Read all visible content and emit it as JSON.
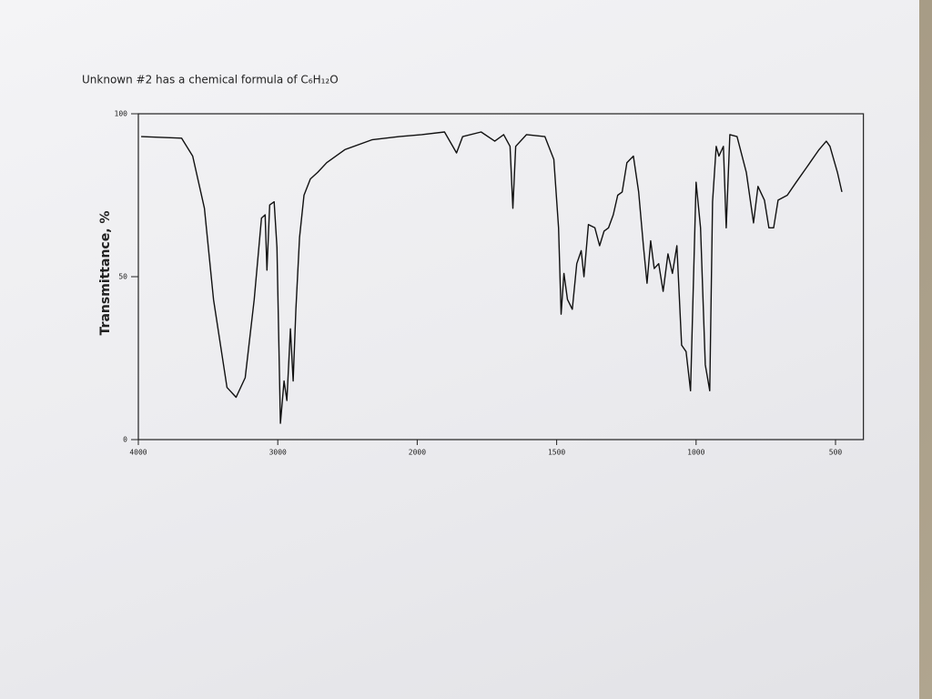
{
  "chart_data": {
    "type": "line",
    "title": "Unknown #2 has a chemical formula of C₆H₁₂O",
    "y_label": "Transmittance, %",
    "color": "#111111",
    "xlim": [
      4000,
      400
    ],
    "ylim": [
      0,
      100
    ],
    "xticks": [
      4000,
      3000,
      2000,
      1500,
      1000,
      500
    ],
    "yticks": [
      0,
      50,
      100
    ],
    "x": [
      3980,
      3690,
      3610,
      3526,
      3461,
      3364,
      3299,
      3234,
      3169,
      3117,
      3091,
      3078,
      3058,
      3026,
      3006,
      2981,
      2955,
      2935,
      2909,
      2890,
      2870,
      2844,
      2812,
      2766,
      2714,
      2649,
      2519,
      2325,
      2130,
      1984,
      1902,
      1859,
      1837,
      1771,
      1722,
      1690,
      1667,
      1657,
      1647,
      1608,
      1542,
      1510,
      1493,
      1484,
      1474,
      1461,
      1444,
      1428,
      1412,
      1402,
      1386,
      1363,
      1346,
      1330,
      1314,
      1297,
      1281,
      1265,
      1248,
      1225,
      1206,
      1189,
      1176,
      1163,
      1150,
      1134,
      1118,
      1101,
      1085,
      1069,
      1052,
      1036,
      1020,
      1000,
      984,
      967,
      951,
      941,
      928,
      918,
      902,
      892,
      879,
      853,
      820,
      794,
      778,
      755,
      739,
      722,
      706,
      673,
      641,
      608,
      559,
      533,
      520,
      493,
      477
    ],
    "values": [
      93,
      92.5,
      87,
      71,
      43,
      16,
      13,
      19,
      43,
      68,
      69,
      52,
      72,
      73,
      59,
      5,
      18,
      12,
      34,
      18,
      40,
      62,
      75,
      80,
      82,
      85,
      89,
      92,
      93,
      93.6,
      94.4,
      88,
      93,
      94.4,
      91.6,
      93.6,
      90,
      71,
      90,
      93.6,
      93,
      86,
      65,
      38.5,
      51,
      43,
      40,
      54,
      58,
      50,
      66,
      65,
      59.5,
      64,
      65,
      69,
      75,
      76,
      85,
      87,
      76,
      59.5,
      48,
      61,
      52.5,
      54,
      45.5,
      57,
      51,
      59.5,
      29,
      27,
      15,
      79,
      65,
      23,
      15,
      73,
      90,
      87,
      90,
      65,
      93.6,
      93,
      82,
      66.5,
      77.7,
      73.5,
      65,
      65,
      73.5,
      75,
      79,
      83,
      89,
      91.6,
      90,
      82,
      76
    ]
  }
}
